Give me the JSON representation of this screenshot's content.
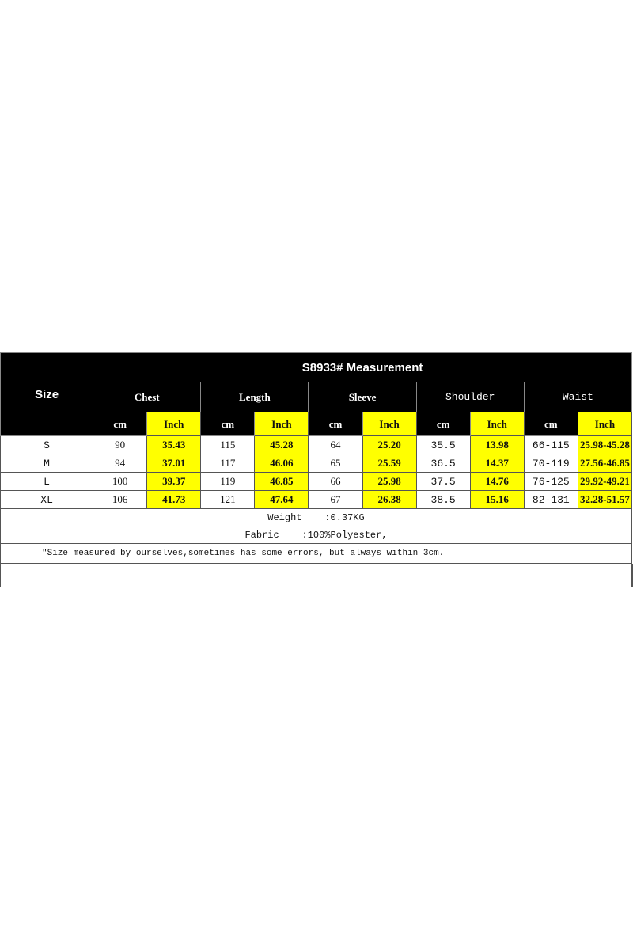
{
  "title": "S8933# Measurement",
  "size_header": "Size",
  "groups": [
    "Chest",
    "Length",
    "Sleeve",
    "Shoulder",
    "Waist"
  ],
  "units": {
    "cm": "cm",
    "inch": "Inch"
  },
  "rows": [
    {
      "size": "S",
      "values": [
        "90",
        "35.43",
        "115",
        "45.28",
        "64",
        "25.20",
        "35.5",
        "13.98",
        "66-115",
        "25.98-45.28"
      ]
    },
    {
      "size": "M",
      "values": [
        "94",
        "37.01",
        "117",
        "46.06",
        "65",
        "25.59",
        "36.5",
        "14.37",
        "70-119",
        "27.56-46.85"
      ]
    },
    {
      "size": "L",
      "values": [
        "100",
        "39.37",
        "119",
        "46.85",
        "66",
        "25.98",
        "37.5",
        "14.76",
        "76-125",
        "29.92-49.21"
      ]
    },
    {
      "size": "XL",
      "values": [
        "106",
        "41.73",
        "121",
        "47.64",
        "67",
        "26.38",
        "38.5",
        "15.16",
        "82-131",
        "32.28-51.57"
      ]
    }
  ],
  "weight": "Weight    :0.37KG",
  "fabric": "Fabric    :100%Polyester,",
  "note": "\"Size measured by ourselves,sometimes has some errors, but always within 3cm.",
  "colors": {
    "header_bg": "#000000",
    "inch_highlight": "#ffff00"
  }
}
